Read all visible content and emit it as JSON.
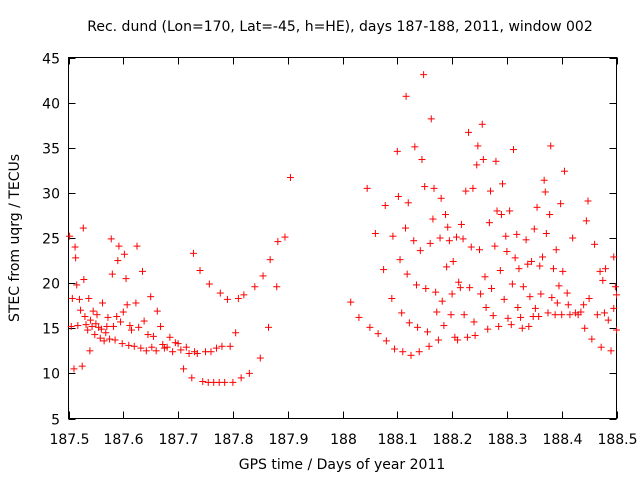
{
  "chart_data": {
    "type": "scatter",
    "title": "Rec. dund (Lon=170, Lat=-45, h=HE), days 187-188, 2011, window 002",
    "xlabel": "GPS time / Days of year 2011",
    "ylabel": "STEC from uqrg / TECUs",
    "xlim": [
      187.5,
      188.5
    ],
    "ylim": [
      5,
      45
    ],
    "xticks": [
      187.5,
      187.6,
      187.7,
      187.8,
      187.9,
      188,
      188.1,
      188.2,
      188.3,
      188.4,
      188.5
    ],
    "xtick_labels": [
      "187.5",
      "187.6",
      "187.7",
      "187.8",
      "187.9",
      "188",
      "188.1",
      "188.2",
      "188.3",
      "188.4",
      "188.5"
    ],
    "yticks": [
      5,
      10,
      15,
      20,
      25,
      30,
      35,
      40,
      45
    ],
    "ytick_labels": [
      "5",
      "10",
      "15",
      "20",
      "25",
      "30",
      "35",
      "40",
      "45"
    ],
    "grid": false,
    "legend": "none",
    "marker": "+",
    "marker_color": "#ff0000",
    "series": [
      {
        "name": "STEC",
        "points": [
          [
            187.502,
            25.2
          ],
          [
            187.505,
            15.2
          ],
          [
            187.507,
            18.3
          ],
          [
            187.51,
            10.5
          ],
          [
            187.512,
            24.0
          ],
          [
            187.513,
            22.8
          ],
          [
            187.515,
            19.8
          ],
          [
            187.517,
            15.3
          ],
          [
            187.52,
            18.2
          ],
          [
            187.522,
            17.0
          ],
          [
            187.525,
            10.8
          ],
          [
            187.527,
            26.1
          ],
          [
            187.528,
            20.4
          ],
          [
            187.53,
            16.3
          ],
          [
            187.532,
            15.4
          ],
          [
            187.535,
            14.8
          ],
          [
            187.537,
            18.3
          ],
          [
            187.539,
            12.5
          ],
          [
            187.54,
            15.9
          ],
          [
            187.543,
            15.2
          ],
          [
            187.545,
            16.9
          ],
          [
            187.548,
            14.3
          ],
          [
            187.55,
            15.5
          ],
          [
            187.552,
            16.5
          ],
          [
            187.555,
            15.1
          ],
          [
            187.558,
            13.9
          ],
          [
            187.56,
            14.9
          ],
          [
            187.562,
            17.8
          ],
          [
            187.565,
            13.6
          ],
          [
            187.568,
            14.5
          ],
          [
            187.57,
            15.2
          ],
          [
            187.572,
            16.2
          ],
          [
            187.575,
            13.8
          ],
          [
            187.578,
            24.9
          ],
          [
            187.58,
            21.0
          ],
          [
            187.582,
            15.2
          ],
          [
            187.585,
            13.7
          ],
          [
            187.588,
            16.3
          ],
          [
            187.59,
            22.5
          ],
          [
            187.592,
            24.1
          ],
          [
            187.595,
            15.7
          ],
          [
            187.598,
            13.3
          ],
          [
            187.6,
            16.8
          ],
          [
            187.602,
            23.2
          ],
          [
            187.605,
            20.5
          ],
          [
            187.607,
            17.6
          ],
          [
            187.61,
            13.1
          ],
          [
            187.612,
            15.3
          ],
          [
            187.615,
            14.8
          ],
          [
            187.62,
            13.0
          ],
          [
            187.623,
            17.8
          ],
          [
            187.625,
            24.1
          ],
          [
            187.628,
            15.1
          ],
          [
            187.632,
            12.8
          ],
          [
            187.635,
            21.3
          ],
          [
            187.638,
            15.8
          ],
          [
            187.642,
            12.5
          ],
          [
            187.645,
            14.3
          ],
          [
            187.65,
            18.5
          ],
          [
            187.652,
            12.9
          ],
          [
            187.655,
            14.1
          ],
          [
            187.66,
            12.5
          ],
          [
            187.662,
            16.9
          ],
          [
            187.668,
            15.2
          ],
          [
            187.672,
            13.2
          ],
          [
            187.675,
            12.8
          ],
          [
            187.68,
            12.9
          ],
          [
            187.685,
            14.0
          ],
          [
            187.69,
            12.4
          ],
          [
            187.695,
            13.4
          ],
          [
            187.7,
            13.3
          ],
          [
            187.705,
            12.6
          ],
          [
            187.71,
            10.5
          ],
          [
            187.715,
            12.9
          ],
          [
            187.72,
            12.2
          ],
          [
            187.725,
            9.5
          ],
          [
            187.728,
            23.3
          ],
          [
            187.73,
            12.4
          ],
          [
            187.735,
            12.2
          ],
          [
            187.74,
            21.4
          ],
          [
            187.745,
            9.1
          ],
          [
            187.75,
            12.4
          ],
          [
            187.755,
            9.0
          ],
          [
            187.757,
            19.9
          ],
          [
            187.76,
            12.4
          ],
          [
            187.765,
            9.0
          ],
          [
            187.77,
            12.8
          ],
          [
            187.775,
            9.0
          ],
          [
            187.777,
            18.9
          ],
          [
            187.78,
            13.0
          ],
          [
            187.785,
            9.0
          ],
          [
            187.79,
            18.2
          ],
          [
            187.795,
            13.0
          ],
          [
            187.8,
            9.0
          ],
          [
            187.805,
            14.5
          ],
          [
            187.81,
            18.3
          ],
          [
            187.815,
            9.5
          ],
          [
            187.82,
            18.7
          ],
          [
            187.83,
            10.0
          ],
          [
            187.84,
            19.6
          ],
          [
            187.85,
            11.7
          ],
          [
            187.855,
            20.8
          ],
          [
            187.865,
            15.1
          ],
          [
            187.868,
            22.6
          ],
          [
            187.88,
            19.6
          ],
          [
            187.882,
            24.6
          ],
          [
            187.895,
            25.1
          ],
          [
            187.905,
            31.7
          ],
          [
            188.015,
            17.9
          ],
          [
            188.03,
            16.2
          ],
          [
            188.045,
            30.5
          ],
          [
            188.05,
            15.1
          ],
          [
            188.06,
            25.5
          ],
          [
            188.065,
            14.4
          ],
          [
            188.075,
            21.5
          ],
          [
            188.078,
            28.6
          ],
          [
            188.08,
            13.6
          ],
          [
            188.09,
            18.3
          ],
          [
            188.092,
            25.2
          ],
          [
            188.095,
            12.7
          ],
          [
            188.1,
            34.6
          ],
          [
            188.102,
            29.6
          ],
          [
            188.105,
            22.6
          ],
          [
            188.108,
            16.7
          ],
          [
            188.11,
            12.4
          ],
          [
            188.115,
            26.1
          ],
          [
            188.116,
            40.7
          ],
          [
            188.118,
            21.0
          ],
          [
            188.12,
            28.9
          ],
          [
            188.122,
            15.6
          ],
          [
            188.125,
            12.0
          ],
          [
            188.13,
            24.7
          ],
          [
            188.132,
            35.1
          ],
          [
            188.135,
            19.8
          ],
          [
            188.137,
            15.1
          ],
          [
            188.14,
            12.4
          ],
          [
            188.142,
            23.6
          ],
          [
            188.145,
            33.7
          ],
          [
            188.148,
            43.1
          ],
          [
            188.15,
            30.7
          ],
          [
            188.152,
            19.4
          ],
          [
            188.155,
            14.6
          ],
          [
            188.158,
            13.0
          ],
          [
            188.16,
            24.4
          ],
          [
            188.162,
            38.2
          ],
          [
            188.165,
            27.1
          ],
          [
            188.167,
            30.5
          ],
          [
            188.17,
            19.0
          ],
          [
            188.172,
            16.8
          ],
          [
            188.175,
            13.7
          ],
          [
            188.178,
            25.0
          ],
          [
            188.18,
            29.4
          ],
          [
            188.182,
            18.0
          ],
          [
            188.185,
            15.3
          ],
          [
            188.188,
            27.6
          ],
          [
            188.19,
            21.8
          ],
          [
            188.192,
            26.2
          ],
          [
            188.195,
            24.7
          ],
          [
            188.198,
            16.5
          ],
          [
            188.2,
            18.8
          ],
          [
            188.202,
            22.4
          ],
          [
            188.205,
            14.0
          ],
          [
            188.208,
            25.1
          ],
          [
            188.21,
            13.7
          ],
          [
            188.212,
            20.1
          ],
          [
            188.215,
            19.5
          ],
          [
            188.217,
            26.5
          ],
          [
            188.22,
            24.9
          ],
          [
            188.222,
            16.5
          ],
          [
            188.225,
            30.2
          ],
          [
            188.228,
            14.0
          ],
          [
            188.23,
            36.7
          ],
          [
            188.232,
            19.5
          ],
          [
            188.235,
            24.0
          ],
          [
            188.238,
            30.5
          ],
          [
            188.24,
            15.7
          ],
          [
            188.242,
            14.2
          ],
          [
            188.245,
            33.1
          ],
          [
            188.247,
            35.2
          ],
          [
            188.25,
            23.7
          ],
          [
            188.252,
            18.8
          ],
          [
            188.255,
            37.6
          ],
          [
            188.257,
            33.7
          ],
          [
            188.26,
            20.7
          ],
          [
            188.262,
            17.3
          ],
          [
            188.265,
            14.9
          ],
          [
            188.268,
            26.7
          ],
          [
            188.27,
            30.2
          ],
          [
            188.272,
            19.4
          ],
          [
            188.275,
            16.4
          ],
          [
            188.278,
            24.1
          ],
          [
            188.28,
            33.5
          ],
          [
            188.282,
            28.0
          ],
          [
            188.285,
            15.2
          ],
          [
            188.288,
            21.4
          ],
          [
            188.29,
            27.6
          ],
          [
            188.292,
            31.0
          ],
          [
            188.295,
            18.2
          ],
          [
            188.298,
            25.2
          ],
          [
            188.3,
            23.5
          ],
          [
            188.302,
            16.1
          ],
          [
            188.305,
            28.0
          ],
          [
            188.308,
            15.4
          ],
          [
            188.31,
            19.9
          ],
          [
            188.312,
            34.8
          ],
          [
            188.315,
            22.8
          ],
          [
            188.318,
            25.4
          ],
          [
            188.32,
            17.3
          ],
          [
            188.322,
            21.6
          ],
          [
            188.325,
            16.2
          ],
          [
            188.328,
            15.0
          ],
          [
            188.33,
            19.6
          ],
          [
            188.335,
            24.8
          ],
          [
            188.338,
            22.1
          ],
          [
            188.34,
            15.2
          ],
          [
            188.342,
            18.5
          ],
          [
            188.345,
            22.4
          ],
          [
            188.348,
            16.3
          ],
          [
            188.35,
            26.0
          ],
          [
            188.352,
            17.2
          ],
          [
            188.355,
            28.4
          ],
          [
            188.358,
            16.3
          ],
          [
            188.36,
            21.9
          ],
          [
            188.362,
            18.8
          ],
          [
            188.365,
            22.9
          ],
          [
            188.368,
            31.4
          ],
          [
            188.37,
            30.1
          ],
          [
            188.372,
            25.5
          ],
          [
            188.375,
            16.7
          ],
          [
            188.378,
            27.6
          ],
          [
            188.38,
            35.2
          ],
          [
            188.382,
            18.4
          ],
          [
            188.385,
            21.6
          ],
          [
            188.388,
            16.5
          ],
          [
            188.39,
            23.7
          ],
          [
            188.392,
            17.8
          ],
          [
            188.395,
            19.7
          ],
          [
            188.398,
            28.8
          ],
          [
            188.4,
            16.5
          ],
          [
            188.402,
            21.3
          ],
          [
            188.405,
            32.4
          ],
          [
            188.41,
            18.9
          ],
          [
            188.412,
            17.6
          ],
          [
            188.415,
            16.5
          ],
          [
            188.42,
            25.0
          ],
          [
            188.425,
            16.7
          ],
          [
            188.43,
            16.5
          ],
          [
            188.435,
            16.8
          ],
          [
            188.44,
            17.6
          ],
          [
            188.442,
            15.0
          ],
          [
            188.445,
            26.9
          ],
          [
            188.448,
            29.1
          ],
          [
            188.45,
            18.3
          ],
          [
            188.455,
            13.8
          ],
          [
            188.46,
            24.3
          ],
          [
            188.465,
            16.5
          ],
          [
            188.47,
            21.3
          ],
          [
            188.472,
            12.9
          ],
          [
            188.475,
            20.3
          ],
          [
            188.478,
            16.7
          ],
          [
            188.48,
            21.6
          ],
          [
            188.485,
            15.9
          ],
          [
            188.49,
            12.5
          ],
          [
            188.495,
            17.2
          ],
          [
            188.495,
            22.9
          ],
          [
            188.498,
            19.6
          ],
          [
            188.5,
            18.7
          ],
          [
            188.5,
            14.8
          ]
        ]
      }
    ]
  }
}
